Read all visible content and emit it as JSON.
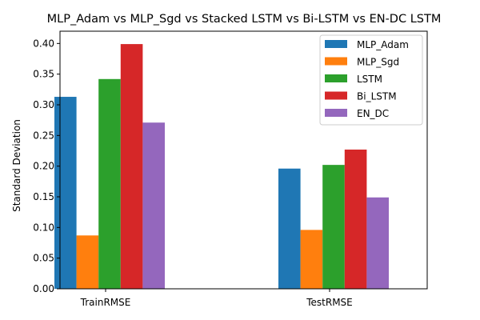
{
  "chart_data": {
    "type": "bar",
    "title": "MLP_Adam vs MLP_Sgd vs Stacked LSTM vs Bi-LSTM vs EN-DC LSTM",
    "xlabel": "",
    "ylabel": "Standard Deviation",
    "categories": [
      "TrainRMSE",
      "TestRMSE"
    ],
    "ylim": [
      0,
      0.42
    ],
    "yticks": [
      "0.00",
      "0.05",
      "0.10",
      "0.15",
      "0.20",
      "0.25",
      "0.30",
      "0.35",
      "0.40"
    ],
    "grid": false,
    "legend_position": "top-right",
    "series": [
      {
        "name": "MLP_Adam",
        "color": "#1f77b4",
        "values": [
          0.313,
          0.196
        ]
      },
      {
        "name": "MLP_Sgd",
        "color": "#ff7f0e",
        "values": [
          0.087,
          0.096
        ]
      },
      {
        "name": "LSTM",
        "color": "#2ca02c",
        "values": [
          0.342,
          0.202
        ]
      },
      {
        "name": "Bi_LSTM",
        "color": "#d62728",
        "values": [
          0.399,
          0.227
        ]
      },
      {
        "name": "EN_DC",
        "color": "#9467bd",
        "values": [
          0.271,
          0.149
        ]
      }
    ]
  }
}
